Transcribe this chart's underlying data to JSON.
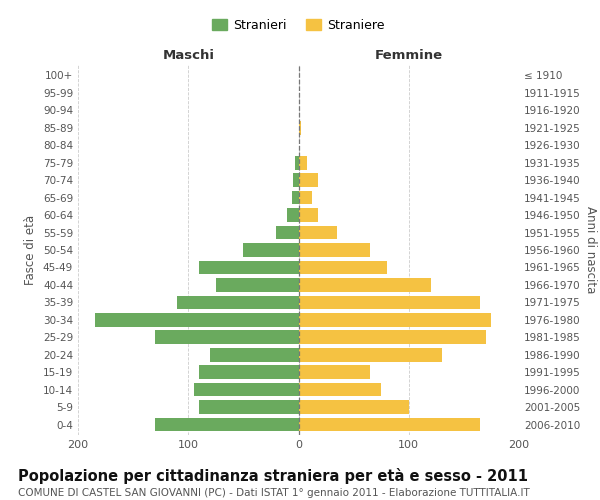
{
  "age_groups": [
    "0-4",
    "5-9",
    "10-14",
    "15-19",
    "20-24",
    "25-29",
    "30-34",
    "35-39",
    "40-44",
    "45-49",
    "50-54",
    "55-59",
    "60-64",
    "65-69",
    "70-74",
    "75-79",
    "80-84",
    "85-89",
    "90-94",
    "95-99",
    "100+"
  ],
  "birth_years": [
    "2006-2010",
    "2001-2005",
    "1996-2000",
    "1991-1995",
    "1986-1990",
    "1981-1985",
    "1976-1980",
    "1971-1975",
    "1966-1970",
    "1961-1965",
    "1956-1960",
    "1951-1955",
    "1946-1950",
    "1941-1945",
    "1936-1940",
    "1931-1935",
    "1926-1930",
    "1921-1925",
    "1916-1920",
    "1911-1915",
    "≤ 1910"
  ],
  "males": [
    130,
    90,
    95,
    90,
    80,
    130,
    185,
    110,
    75,
    90,
    50,
    20,
    10,
    6,
    5,
    3,
    0,
    0,
    0,
    0,
    0
  ],
  "females": [
    165,
    100,
    75,
    65,
    130,
    170,
    175,
    165,
    120,
    80,
    65,
    35,
    18,
    12,
    18,
    8,
    0,
    2,
    0,
    0,
    0
  ],
  "male_color": "#6aaa5e",
  "female_color": "#f5c242",
  "center_line_color": "#777777",
  "grid_color": "#cccccc",
  "background_color": "#ffffff",
  "title": "Popolazione per cittadinanza straniera per età e sesso - 2011",
  "subtitle": "COMUNE DI CASTEL SAN GIOVANNI (PC) - Dati ISTAT 1° gennaio 2011 - Elaborazione TUTTITALIA.IT",
  "xlabel_left": "Maschi",
  "xlabel_right": "Femmine",
  "ylabel_left": "Fasce di età",
  "ylabel_right": "Anni di nascita",
  "legend_male": "Stranieri",
  "legend_female": "Straniere",
  "xlim": 200,
  "title_fontsize": 10.5,
  "subtitle_fontsize": 7.5
}
